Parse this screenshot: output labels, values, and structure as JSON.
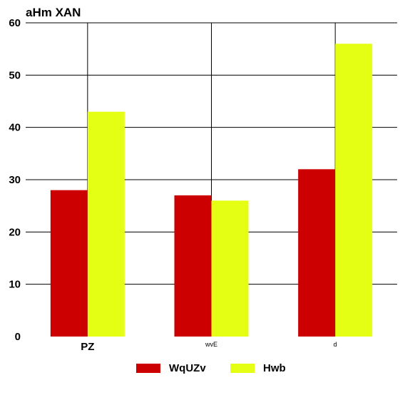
{
  "chart_data": {
    "type": "bar",
    "title": "aHm XAN",
    "categories": [
      "PZ",
      "wvE",
      "d"
    ],
    "series": [
      {
        "name": "WqUZv",
        "color": "#cc0000",
        "values": [
          28,
          27,
          32
        ]
      },
      {
        "name": "Hwb",
        "color": "#e5ff14",
        "values": [
          43,
          26,
          56
        ]
      }
    ],
    "ylim": [
      0,
      60
    ],
    "yticks": [
      0,
      10,
      20,
      30,
      40,
      50,
      60
    ],
    "grid": true,
    "legend_position": "bottom"
  }
}
